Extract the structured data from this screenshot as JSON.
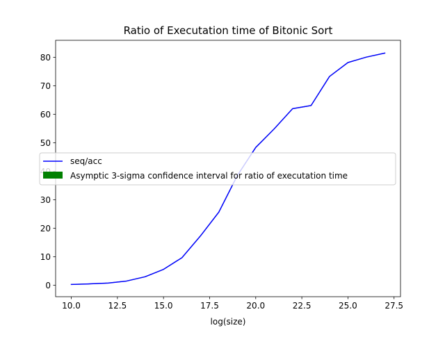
{
  "chart_data": {
    "type": "line",
    "title": "Ratio of Executation time of Bitonic Sort",
    "xlabel": "log(size)",
    "ylabel": "",
    "xlim": [
      9.15,
      27.85
    ],
    "ylim": [
      -4,
      86
    ],
    "x_ticks": [
      10.0,
      12.5,
      15.0,
      17.5,
      20.0,
      22.5,
      25.0,
      27.5
    ],
    "x_tick_labels": [
      "10.0",
      "12.5",
      "15.0",
      "17.5",
      "20.0",
      "22.5",
      "25.0",
      "27.5"
    ],
    "y_ticks": [
      0,
      10,
      20,
      30,
      40,
      50,
      60,
      70,
      80
    ],
    "y_tick_labels": [
      "0",
      "10",
      "20",
      "30",
      "40",
      "50",
      "60",
      "70",
      "80"
    ],
    "grid": false,
    "legend_placement": "center-left",
    "series": [
      {
        "name": "seq/acc",
        "kind": "line",
        "color": "#0000ff",
        "x": [
          10,
          11,
          12,
          13,
          14,
          15,
          16,
          17,
          18,
          19,
          20,
          21,
          22,
          23,
          24,
          25,
          26,
          27
        ],
        "values": [
          0.3,
          0.5,
          0.8,
          1.5,
          3.0,
          5.6,
          9.7,
          17.3,
          25.7,
          38.5,
          48.4,
          54.9,
          62.0,
          63.1,
          73.3,
          78.2,
          80.1,
          81.5
        ]
      },
      {
        "name": "Asymptic 3-sigma confidence interval for ratio of executation time",
        "kind": "band",
        "color": "#008000",
        "x": [
          10,
          11,
          12,
          13,
          14,
          15,
          16,
          17,
          18,
          19,
          20,
          21,
          22,
          23,
          24,
          25,
          26,
          27
        ],
        "lower": [
          0.3,
          0.5,
          0.8,
          1.5,
          3.0,
          5.6,
          9.7,
          17.3,
          25.7,
          38.5,
          48.4,
          54.9,
          62.0,
          63.1,
          73.3,
          78.2,
          80.1,
          81.5
        ],
        "upper": [
          0.3,
          0.5,
          0.8,
          1.5,
          3.0,
          5.6,
          9.7,
          17.3,
          25.7,
          38.5,
          48.4,
          54.9,
          62.0,
          63.1,
          73.3,
          78.2,
          80.1,
          81.5
        ]
      }
    ]
  }
}
